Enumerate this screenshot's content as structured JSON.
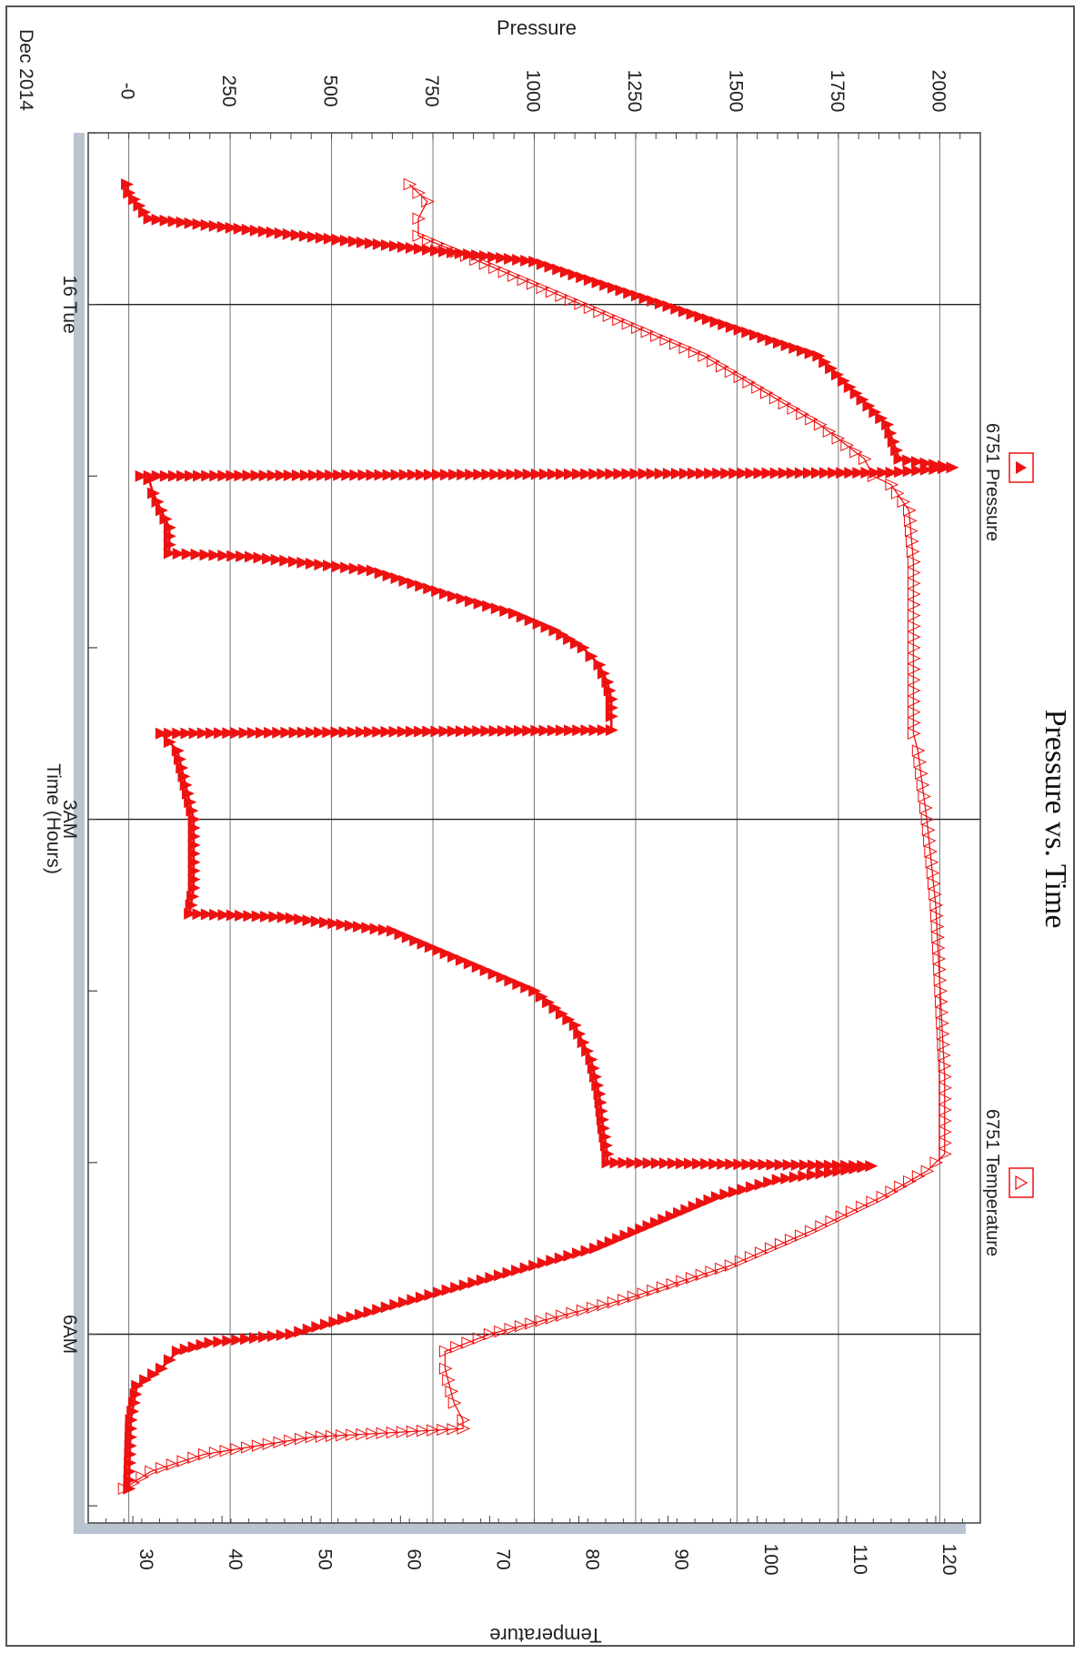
{
  "chart_data": {
    "type": "line",
    "title": "Pressure vs. Time",
    "xlabel": "Time (Hours)",
    "date_label": "Dec 2014",
    "x_ticks": [
      {
        "label": "16 Tue",
        "hours": 0
      },
      {
        "label": "3AM",
        "hours": 3
      },
      {
        "label": "6AM",
        "hours": 6
      }
    ],
    "xlim_hours": [
      -1,
      7.1
    ],
    "y_left": {
      "label": "Pressure",
      "ticks": [
        "-0",
        "250",
        "500",
        "750",
        "1000",
        "1250",
        "1500",
        "1750",
        "2000"
      ],
      "lim": [
        -100,
        2100
      ]
    },
    "y_right": {
      "label": "Temperature",
      "ticks": [
        "30",
        "40",
        "50",
        "60",
        "70",
        "80",
        "90",
        "100",
        "110",
        "120"
      ],
      "lim": [
        25,
        125
      ]
    },
    "grid": true,
    "legend": [
      {
        "name": "6751 Pressure",
        "marker": "filled-triangle"
      },
      {
        "name": "6751 Temperature",
        "marker": "open-triangle"
      }
    ],
    "series": [
      {
        "name": "6751 Pressure",
        "axis": "left",
        "x": [
          -0.7,
          -0.65,
          -0.5,
          -0.25,
          0.3,
          0.7,
          0.9,
          0.95,
          0.98,
          1.0,
          1.02,
          1.1,
          1.3,
          1.45,
          1.47,
          1.55,
          1.7,
          1.8,
          1.9,
          2.0,
          2.1,
          2.2,
          2.3,
          2.4,
          2.48,
          2.5,
          2.6,
          2.8,
          3.0,
          3.2,
          3.4,
          3.55,
          3.57,
          3.65,
          3.8,
          3.9,
          4.0,
          4.1,
          4.2,
          4.4,
          4.6,
          4.8,
          4.95,
          5.0,
          5.02,
          5.05,
          5.1,
          5.2,
          5.35,
          5.5,
          5.6,
          5.7,
          5.8,
          5.9,
          6.0,
          6.05,
          6.1,
          6.2,
          6.3,
          6.5,
          6.9
        ],
        "y": [
          -5,
          0,
          50,
          1000,
          1700,
          1870,
          1900,
          2030,
          1880,
          30,
          50,
          60,
          100,
          100,
          300,
          600,
          800,
          950,
          1050,
          1120,
          1160,
          1180,
          1190,
          1190,
          1190,
          80,
          120,
          140,
          160,
          160,
          160,
          150,
          380,
          650,
          800,
          900,
          1000,
          1050,
          1100,
          1140,
          1160,
          1170,
          1180,
          1180,
          1830,
          1750,
          1600,
          1450,
          1300,
          1150,
          1000,
          850,
          700,
          550,
          400,
          200,
          120,
          80,
          20,
          5,
          0
        ]
      },
      {
        "name": "6751 Temperature",
        "axis": "right",
        "x": [
          -0.7,
          -0.6,
          -0.5,
          -0.4,
          0.3,
          0.7,
          0.9,
          1.0,
          1.05,
          1.2,
          1.5,
          2.0,
          2.5,
          2.6,
          3.0,
          3.5,
          4.0,
          4.5,
          4.95,
          5.05,
          5.2,
          5.4,
          5.6,
          5.8,
          6.0,
          6.1,
          6.2,
          6.4,
          6.5,
          6.55,
          6.6,
          6.7,
          6.8,
          6.9
        ],
        "y": [
          61,
          63,
          62,
          62,
          94,
          107,
          112,
          113,
          115,
          117,
          117.5,
          117.5,
          117.5,
          118,
          119,
          120,
          120.5,
          121,
          121,
          119,
          114,
          106,
          97,
          85,
          70,
          65,
          65,
          66,
          67,
          67,
          50,
          38,
          32,
          29
        ]
      }
    ]
  }
}
